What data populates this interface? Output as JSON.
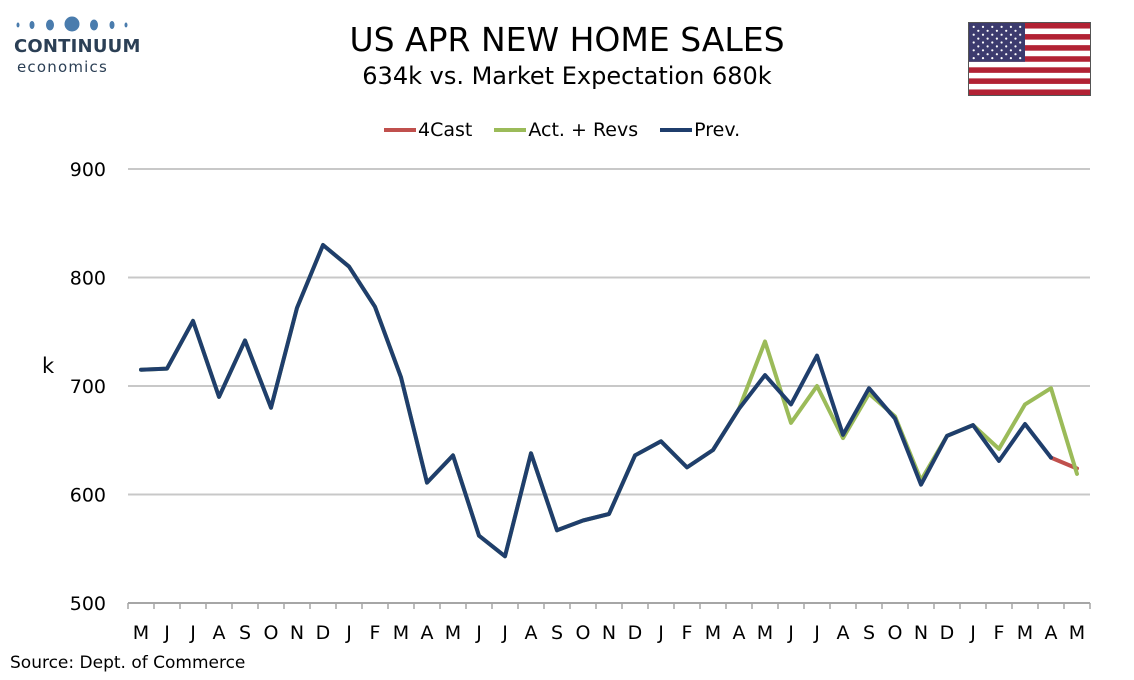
{
  "logo": {
    "name": "CONTINUUM",
    "sub": "economics"
  },
  "flag_icon": "us-flag-icon",
  "colors": {
    "forecast": "#c0504d",
    "actual": "#9bbb59",
    "previous": "#1f3e6c",
    "grid": "#c8c8c8"
  },
  "chart_data": {
    "type": "line",
    "title": "US APR NEW HOME SALES",
    "subtitle": "634k vs. Market Expectation 680k",
    "ylabel": "k",
    "ylim": [
      500,
      900
    ],
    "yticks": [
      500,
      600,
      700,
      800,
      900
    ],
    "grid": true,
    "legend_position": "top-center",
    "categories": [
      "M",
      "J",
      "J",
      "A",
      "S",
      "O",
      "N",
      "D",
      "J",
      "F",
      "M",
      "A",
      "M",
      "J",
      "J",
      "A",
      "S",
      "O",
      "N",
      "D",
      "J",
      "F",
      "M",
      "A",
      "M",
      "J",
      "J",
      "A",
      "S",
      "O",
      "N",
      "D",
      "J",
      "F",
      "M",
      "A",
      "M"
    ],
    "series": [
      {
        "name": "4Cast",
        "color": "#c0504d",
        "values": [
          null,
          null,
          null,
          null,
          null,
          null,
          null,
          null,
          null,
          null,
          null,
          null,
          null,
          null,
          null,
          null,
          null,
          null,
          null,
          null,
          null,
          null,
          null,
          null,
          null,
          null,
          null,
          null,
          null,
          null,
          null,
          null,
          null,
          null,
          null,
          634,
          624
        ]
      },
      {
        "name": "Act. + Revs",
        "color": "#9bbb59",
        "values": [
          715,
          716,
          760,
          690,
          742,
          680,
          772,
          830,
          810,
          773,
          708,
          611,
          636,
          562,
          543,
          638,
          567,
          576,
          582,
          636,
          649,
          625,
          641,
          679,
          741,
          666,
          700,
          652,
          693,
          672,
          613,
          654,
          664,
          642,
          683,
          698,
          619
        ]
      },
      {
        "name": "Prev.",
        "color": "#1f3e6c",
        "values": [
          715,
          716,
          760,
          690,
          742,
          680,
          772,
          830,
          810,
          773,
          708,
          611,
          636,
          562,
          543,
          638,
          567,
          576,
          582,
          636,
          649,
          625,
          641,
          679,
          710,
          683,
          728,
          655,
          698,
          670,
          609,
          654,
          664,
          631,
          665,
          634,
          null
        ]
      }
    ]
  },
  "source": "Source: Dept. of Commerce"
}
